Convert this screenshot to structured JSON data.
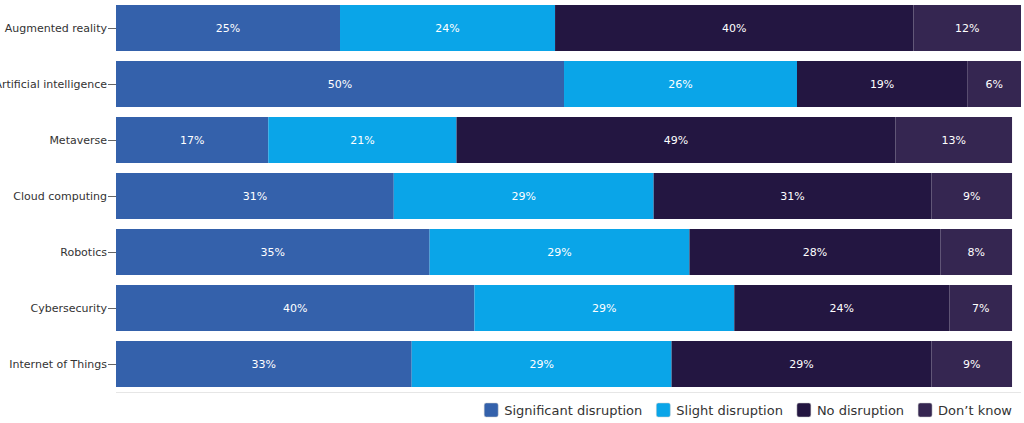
{
  "chart_data": {
    "type": "bar",
    "orientation": "horizontal",
    "stacked": true,
    "data_labels": true,
    "tick_labels": "y",
    "grid": false,
    "legend": "bottom-right",
    "categories": [
      "Augmented reality",
      "Artificial intelligence",
      "Metaverse",
      "Cloud computing",
      "Robotics",
      "Cybersecurity",
      "Internet of Things"
    ],
    "xlim": [
      0,
      101
    ],
    "series": [
      {
        "name": "Significant disruption",
        "color": "#3461ab",
        "values": [
          25,
          50,
          17,
          31,
          35,
          40,
          33
        ],
        "value_labels": [
          "25%",
          "50%",
          "17%",
          "31%",
          "35%",
          "40%",
          "33%"
        ]
      },
      {
        "name": "Slight disruption",
        "color": "#0aa5e8",
        "values": [
          24,
          26,
          21,
          29,
          29,
          29,
          29
        ],
        "value_labels": [
          "24%",
          "26%",
          "21%",
          "29%",
          "29%",
          "29%",
          "29%"
        ]
      },
      {
        "name": "No disruption",
        "color": "#231641",
        "values": [
          40,
          19,
          49,
          31,
          28,
          24,
          29
        ],
        "value_labels": [
          "40%",
          "19%",
          "49%",
          "31%",
          "28%",
          "24%",
          "29%"
        ]
      },
      {
        "name": "Don’t know",
        "color": "#352651",
        "values": [
          12,
          6,
          13,
          9,
          8,
          7,
          9
        ],
        "value_labels": [
          "12%",
          "6%",
          "13%",
          "9%",
          "8%",
          "7%",
          "9%"
        ]
      }
    ]
  }
}
